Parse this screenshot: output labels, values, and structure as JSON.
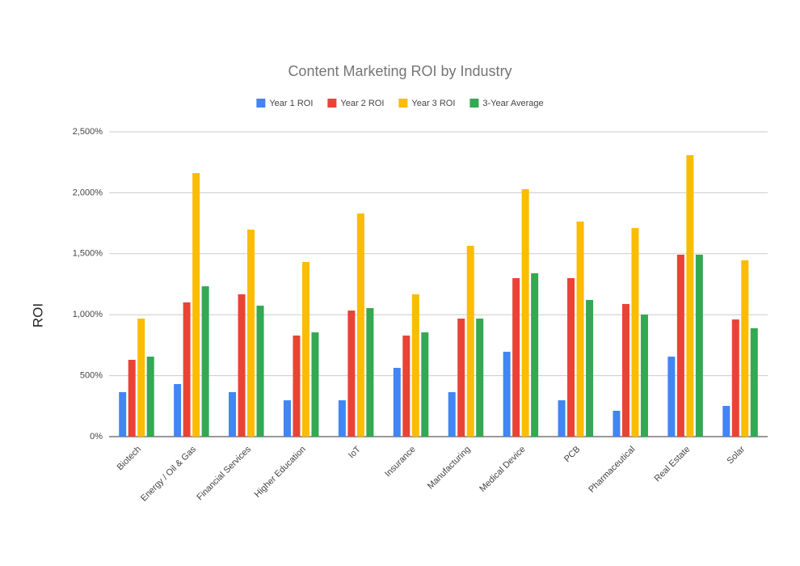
{
  "chart_data": {
    "type": "bar",
    "title": "Content Marketing ROI by Industry",
    "y_label": "ROI",
    "categories": [
      "Biotech",
      "Energy / Oil & Gas",
      "Financial Services",
      "Higher Education",
      "IoT",
      "Insurance",
      "Manufacturing",
      "Medical Device",
      "PCB",
      "Pharmaceutical",
      "Real Estate",
      "Solar"
    ],
    "series": [
      {
        "name": "Year 1 ROI",
        "color": "#4285f4",
        "values": [
          365,
          431,
          365,
          298,
          298,
          564,
          365,
          696,
          298,
          212,
          656,
          252
        ]
      },
      {
        "name": "Year 2 ROI",
        "color": "#ea4335",
        "values": [
          630,
          1101,
          1167,
          829,
          1034,
          829,
          968,
          1300,
          1300,
          1088,
          1492,
          961
        ]
      },
      {
        "name": "Year 3 ROI",
        "color": "#fbbc04",
        "values": [
          968,
          2162,
          1698,
          1432,
          1830,
          1167,
          1565,
          2029,
          1764,
          1711,
          2308,
          1446
        ]
      },
      {
        "name": "3-Year Average",
        "color": "#34a853",
        "values": [
          656,
          1233,
          1074,
          855,
          1054,
          855,
          968,
          1340,
          1121,
          1001,
          1492,
          889
        ]
      }
    ],
    "ylim": [
      0,
      2500
    ],
    "yticks": [
      {
        "value": 0,
        "label": "0%"
      },
      {
        "value": 500,
        "label": "500%"
      },
      {
        "value": 1000,
        "label": "1,000%"
      },
      {
        "value": 1500,
        "label": "1,500%"
      },
      {
        "value": 2000,
        "label": "2,000%"
      },
      {
        "value": 2500,
        "label": "2,500%"
      }
    ],
    "grid": true,
    "legend": "top"
  }
}
